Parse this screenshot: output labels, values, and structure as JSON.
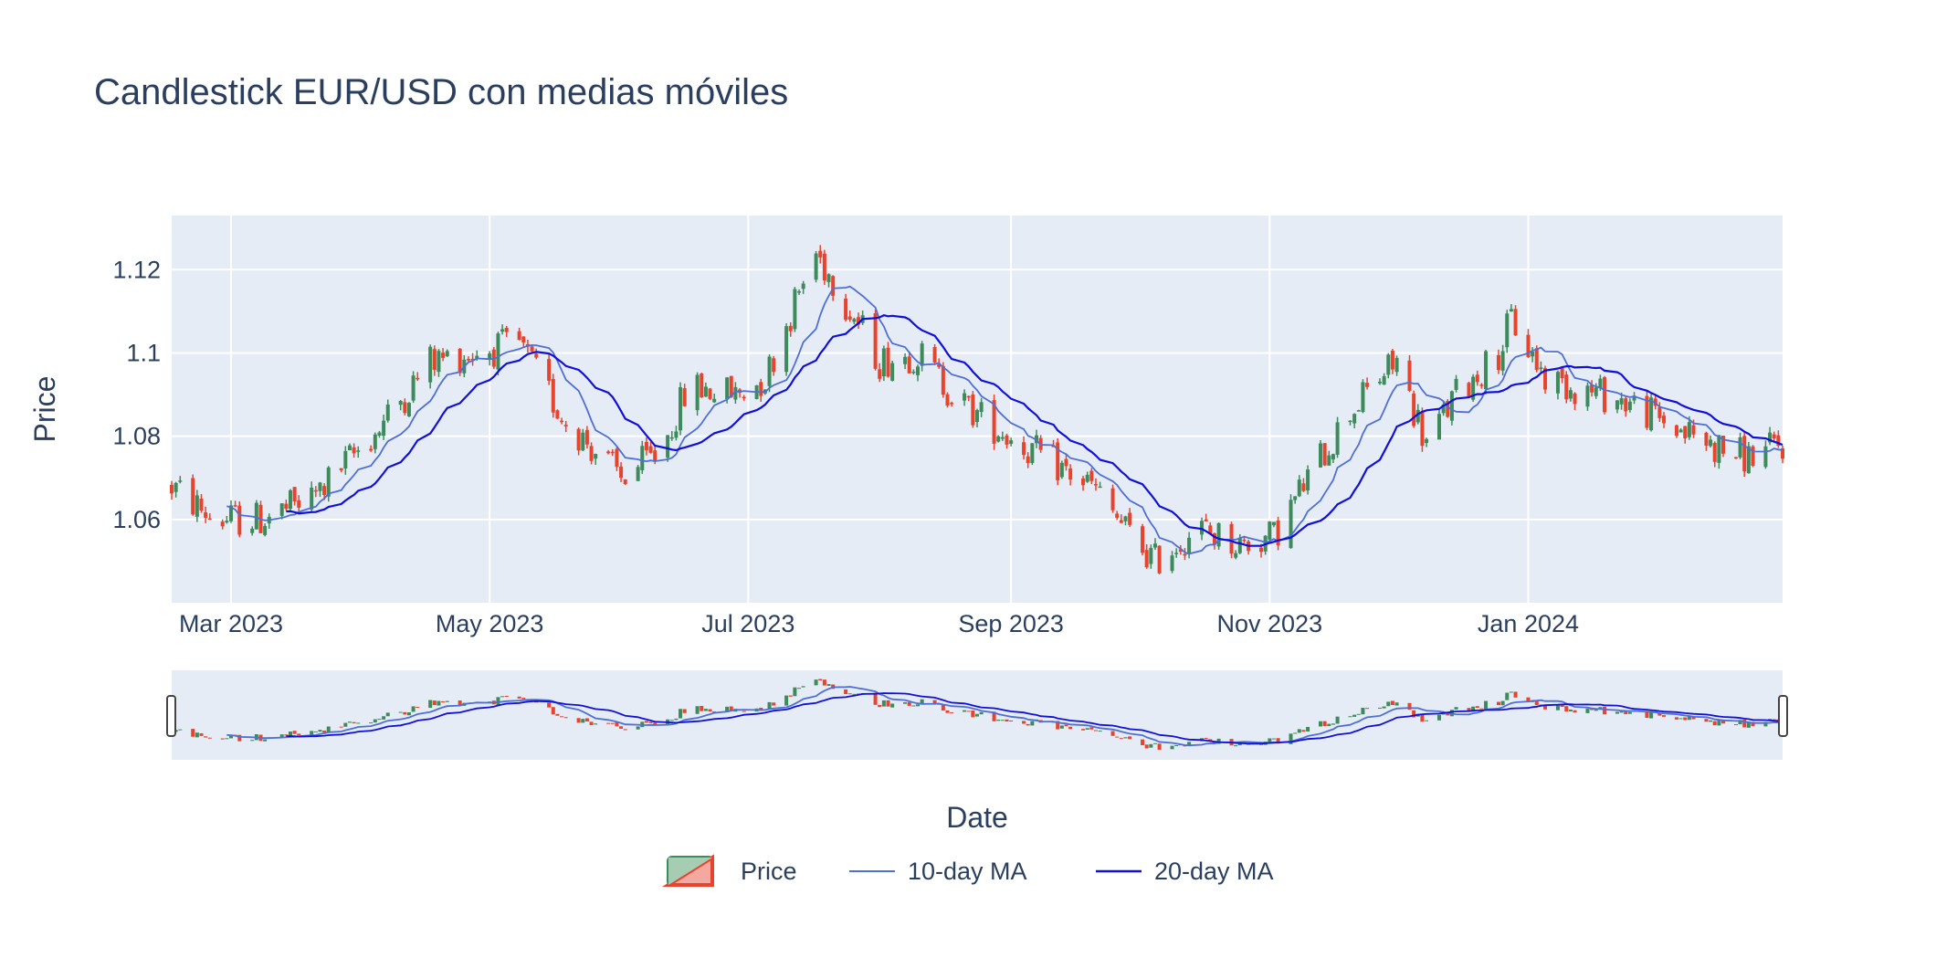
{
  "chart_data": {
    "type": "candlestick",
    "title": "Candlestick EUR/USD con medias móviles",
    "xlabel": "Date",
    "ylabel": "Price",
    "x_range": [
      "2023-02-15",
      "2024-03-01"
    ],
    "ylim": [
      1.04,
      1.133
    ],
    "x_ticks": [
      {
        "date": "2023-03-01",
        "label": "Mar 2023"
      },
      {
        "date": "2023-05-01",
        "label": "May 2023"
      },
      {
        "date": "2023-07-01",
        "label": "Jul 2023"
      },
      {
        "date": "2023-09-01",
        "label": "Sep 2023"
      },
      {
        "date": "2023-11-01",
        "label": "Nov 2023"
      },
      {
        "date": "2024-01-01",
        "label": "Jan 2024"
      }
    ],
    "y_ticks": [
      {
        "value": 1.06,
        "label": "1.06"
      },
      {
        "value": 1.08,
        "label": "1.08"
      },
      {
        "value": 1.1,
        "label": "1.1"
      },
      {
        "value": 1.12,
        "label": "1.12"
      }
    ],
    "grid": true,
    "legend_position": "bottom-center",
    "increasing_color": "#3d8b5a",
    "decreasing_color": "#e8432d",
    "trend_points": [
      [
        "2023-02-15",
        1.068
      ],
      [
        "2023-02-25",
        1.06
      ],
      [
        "2023-03-08",
        1.06
      ],
      [
        "2023-03-20",
        1.065
      ],
      [
        "2023-04-05",
        1.082
      ],
      [
        "2023-04-17",
        1.098
      ],
      [
        "2023-04-27",
        1.1
      ],
      [
        "2023-05-08",
        1.102
      ],
      [
        "2023-05-18",
        1.085
      ],
      [
        "2023-06-01",
        1.07
      ],
      [
        "2023-06-10",
        1.076
      ],
      [
        "2023-06-17",
        1.092
      ],
      [
        "2023-06-28",
        1.09
      ],
      [
        "2023-07-05",
        1.094
      ],
      [
        "2023-07-12",
        1.112
      ],
      [
        "2023-07-17",
        1.124
      ],
      [
        "2023-07-22",
        1.116
      ],
      [
        "2023-08-01",
        1.098
      ],
      [
        "2023-08-10",
        1.1
      ],
      [
        "2023-08-20",
        1.088
      ],
      [
        "2023-09-05",
        1.077
      ],
      [
        "2023-09-20",
        1.068
      ],
      [
        "2023-09-30",
        1.055
      ],
      [
        "2023-10-05",
        1.05
      ],
      [
        "2023-10-15",
        1.058
      ],
      [
        "2023-10-25",
        1.054
      ],
      [
        "2023-11-02",
        1.056
      ],
      [
        "2023-11-10",
        1.07
      ],
      [
        "2023-11-20",
        1.086
      ],
      [
        "2023-11-27",
        1.094
      ],
      [
        "2023-12-01",
        1.098
      ],
      [
        "2023-12-08",
        1.078
      ],
      [
        "2023-12-15",
        1.09
      ],
      [
        "2023-12-25",
        1.1
      ],
      [
        "2023-12-28",
        1.108
      ],
      [
        "2024-01-05",
        1.094
      ],
      [
        "2024-01-15",
        1.091
      ],
      [
        "2024-01-25",
        1.088
      ],
      [
        "2024-02-05",
        1.082
      ],
      [
        "2024-02-15",
        1.077
      ],
      [
        "2024-02-22",
        1.075
      ],
      [
        "2024-03-01",
        1.078
      ]
    ],
    "series": [
      {
        "name": "Price",
        "kind": "candlestick"
      },
      {
        "name": "10-day MA",
        "kind": "line",
        "color": "#4f6fd6",
        "window": 10
      },
      {
        "name": "20-day MA",
        "kind": "line",
        "color": "#1010d8",
        "window": 20
      }
    ]
  }
}
